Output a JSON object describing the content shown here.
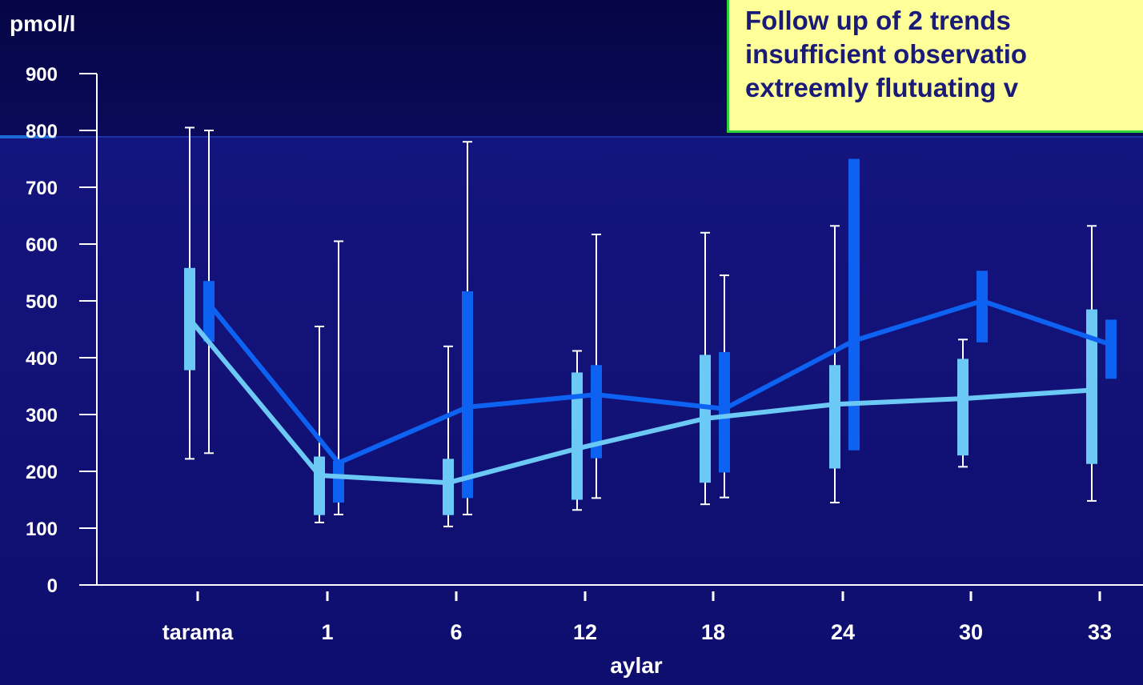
{
  "note": {
    "lines": [
      "Follow up of 2 trends",
      "insufficient observatio",
      "extreemly  flutuating v"
    ]
  },
  "chart_data": {
    "type": "box",
    "ylabel": "pmol/l",
    "xlabel": "aylar",
    "categories": [
      "tarama",
      "1",
      "6",
      "12",
      "18",
      "24",
      "30",
      "33"
    ],
    "ylim": [
      0,
      900
    ],
    "yticks": [
      0,
      100,
      200,
      300,
      400,
      500,
      600,
      700,
      800,
      900
    ],
    "grid": false,
    "series": [
      {
        "color": "#6cc8f4",
        "mean": [
          468,
          193,
          180,
          240,
          293,
          318,
          328,
          343
        ],
        "box_low": [
          378,
          123,
          123,
          150,
          180,
          205,
          228,
          213
        ],
        "box_high": [
          558,
          226,
          222,
          374,
          405,
          387,
          398,
          485
        ],
        "whisker_low": [
          222,
          110,
          103,
          132,
          142,
          145,
          208,
          148
        ],
        "whisker_high": [
          805,
          455,
          420,
          412,
          620,
          632,
          432,
          632
        ]
      },
      {
        "color": "#0d62f2",
        "mean": [
          495,
          215,
          313,
          335,
          310,
          430,
          500,
          423
        ],
        "box_low": [
          428,
          145,
          153,
          223,
          198,
          237,
          427,
          363
        ],
        "box_high": [
          535,
          218,
          517,
          387,
          410,
          750,
          553,
          467
        ],
        "whisker_low": [
          232,
          124,
          124,
          153,
          154,
          null,
          null,
          null
        ],
        "whisker_high": [
          800,
          605,
          780,
          617,
          545,
          null,
          null,
          null
        ]
      }
    ]
  }
}
